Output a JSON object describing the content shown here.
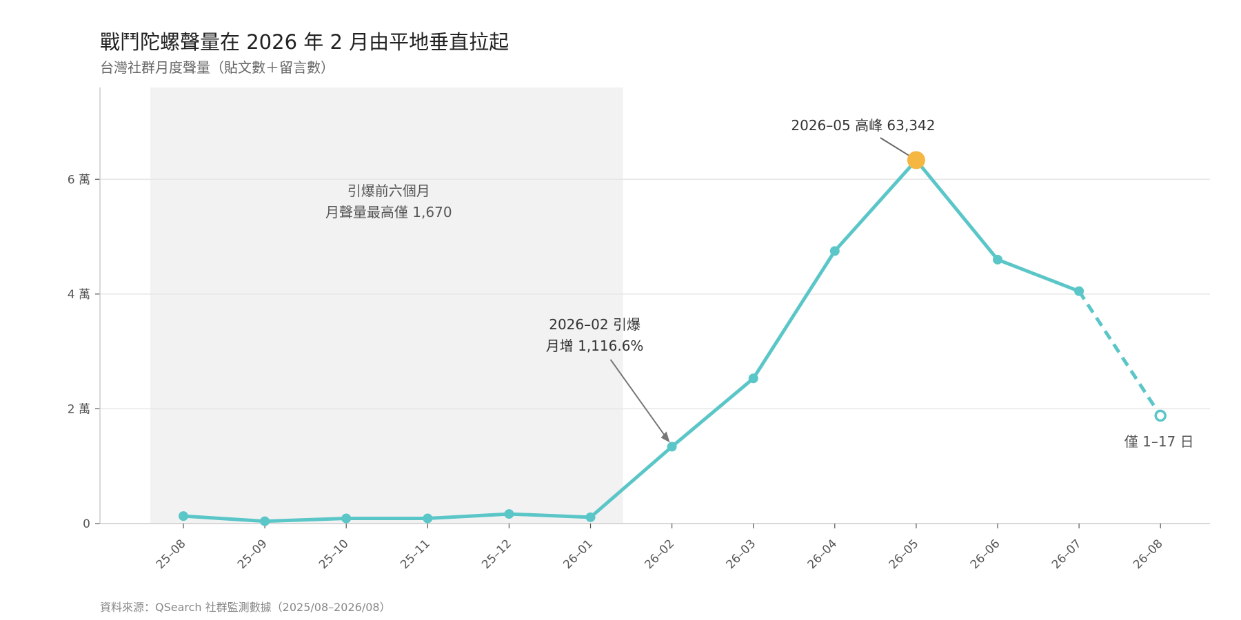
{
  "title": "戰鬥陀螺聲量在 2026 年 2 月由平地垂直拉起",
  "subtitle": "台灣社群月度聲量（貼文數＋留言數）",
  "source": "資料來源：QSearch 社群監測數據（2025/08–2026/08）",
  "colors": {
    "line": "#5bc6c8",
    "peak": "#f5b642",
    "shade": "#f2f2f2",
    "grid": "#e6e6e6",
    "axis": "#cccccc"
  },
  "chart_data": {
    "type": "line",
    "categories": [
      "25–08",
      "25–09",
      "25–10",
      "25–11",
      "25–12",
      "26–01",
      "26–02",
      "26–03",
      "26–04",
      "26–05",
      "26–06",
      "26–07",
      "26–08"
    ],
    "values": [
      1300,
      400,
      900,
      900,
      1670,
      1100,
      13400,
      25300,
      47500,
      63342,
      46000,
      40500,
      18800
    ],
    "partial_last_point": true,
    "ylim": [
      0,
      76000
    ],
    "yticks": [
      {
        "value": 0,
        "label": "0"
      },
      {
        "value": 20000,
        "label": "2 萬"
      },
      {
        "value": 40000,
        "label": "4 萬"
      },
      {
        "value": 60000,
        "label": "6 萬"
      }
    ],
    "grid": true,
    "highlight_period": {
      "from_index": 0,
      "to_index": 5,
      "label_line1": "引爆前六個月",
      "label_line2": "月聲量最高僅 1,670"
    },
    "annotations": {
      "surge": {
        "index": 6,
        "line1": "2026–02 引爆",
        "line2": "月增 1,116.6%"
      },
      "peak": {
        "index": 9,
        "text": "2026–05 高峰 63,342"
      },
      "partial": {
        "index": 12,
        "text": "僅 1–17 日"
      }
    }
  }
}
